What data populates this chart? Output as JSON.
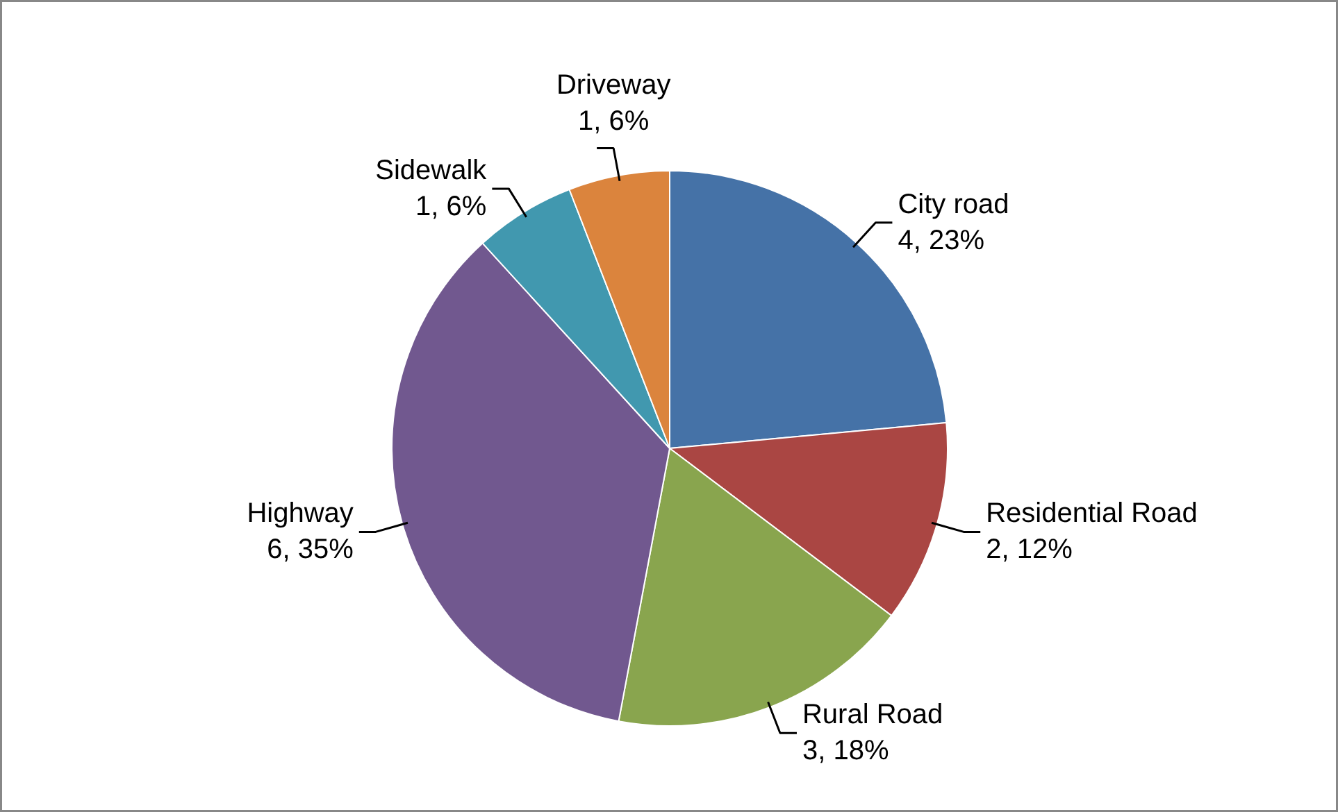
{
  "chart_data": {
    "type": "pie",
    "categories": [
      "City road",
      "Residential Road",
      "Rural Road",
      "Highway",
      "Sidewalk",
      "Driveway"
    ],
    "values": [
      4,
      2,
      3,
      6,
      1,
      1
    ],
    "colors": [
      "#4572a7",
      "#aa4643",
      "#89a54e",
      "#71588f",
      "#4198af",
      "#db843d"
    ],
    "value_labels": [
      "4, 23%",
      "2, 12%",
      "3, 18%",
      "6, 35%",
      "1, 6%",
      "1, 6%"
    ]
  }
}
